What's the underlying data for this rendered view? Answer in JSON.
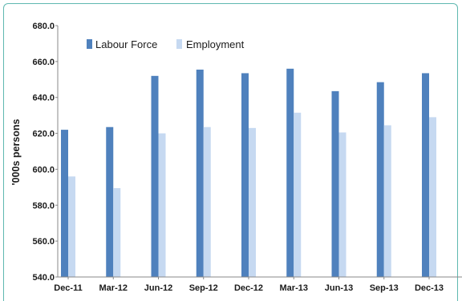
{
  "chart_data": {
    "type": "bar",
    "categories": [
      "Dec-11",
      "Mar-12",
      "Jun-12",
      "Sep-12",
      "Dec-12",
      "Mar-13",
      "Jun-13",
      "Sep-13",
      "Dec-13"
    ],
    "series": [
      {
        "name": "Labour Force",
        "color": "#4f81bd",
        "values": [
          622.0,
          623.5,
          652.0,
          655.5,
          653.5,
          656.0,
          643.5,
          648.5,
          653.5
        ]
      },
      {
        "name": "Employment",
        "color": "#c6d9f1",
        "values": [
          596.0,
          589.5,
          620.0,
          623.5,
          623.0,
          631.5,
          620.5,
          624.5,
          629.0
        ]
      }
    ],
    "ylabel": "'000s persons",
    "xlabel": "",
    "ylim": [
      540.0,
      680.0
    ],
    "yticks": [
      "540.0",
      "560.0",
      "580.0",
      "600.0",
      "620.0",
      "640.0",
      "660.0",
      "680.0"
    ],
    "legend_position": "top-left",
    "grid": false
  }
}
